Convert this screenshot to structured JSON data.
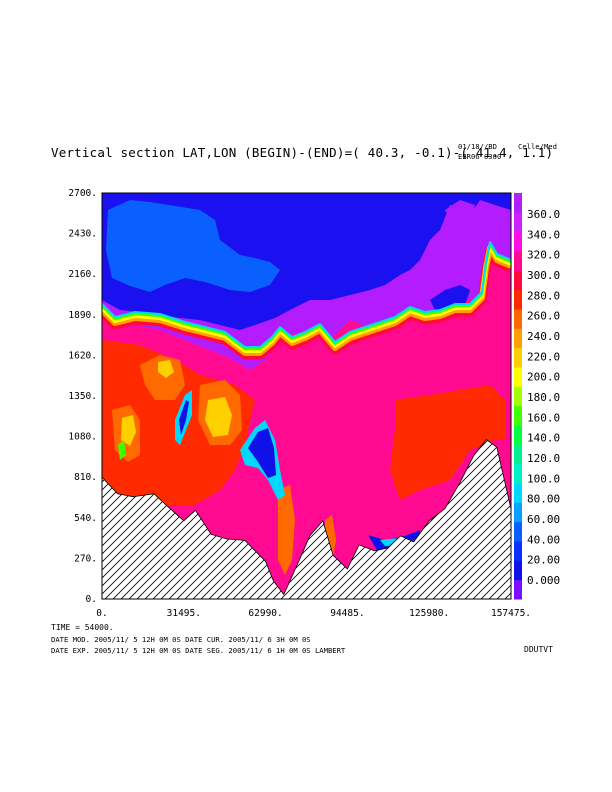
{
  "header": {
    "title": "Vertical section LAT,LON (BEGIN)-(END)=( 40.3, -0.1)-( 41.4,  1.1)",
    "date_code": "01/18//BD",
    "run_code": "EBR06 0300",
    "units": "Celle/Med"
  },
  "footer": {
    "time_line": "TIME =   54000.",
    "line1": "DATE MOD. 2005/11/ 5  12H 0M 0S   DATE CUR. 2005/11/ 6   3H 0M 0S",
    "line2": "DATE EXP. 2005/11/ 5  12H 0M 0S   DATE SEG. 2005/11/ 6   1H 0M 0S   LAMBERT",
    "tag": "DDUTVT"
  },
  "chart_data": {
    "type": "heatmap",
    "title": "Vertical section LAT,LON (BEGIN)-(END)=( 40.3, -0.1)-( 41.4,  1.1)",
    "xlabel": "",
    "ylabel": "",
    "xlim": [
      0,
      157475
    ],
    "ylim": [
      0,
      2700
    ],
    "x_ticks": [
      "0.",
      "31495.",
      "62990.",
      "94485.",
      "125980.",
      "157475."
    ],
    "y_ticks": [
      "0.",
      "270.",
      "540.",
      "810.",
      "1080.",
      "1350.",
      "1620.",
      "1890.",
      "2160.",
      "2430.",
      "2700."
    ],
    "colorbar_labels": [
      "0.000",
      "20.00",
      "40.00",
      "60.00",
      "80.00",
      "100.0",
      "120.0",
      "140.0",
      "160.0",
      "180.0",
      "200.0",
      "220.0",
      "240.0",
      "260.0",
      "280.0",
      "300.0",
      "320.0",
      "340.0",
      "360.0"
    ],
    "colorbar_colors": [
      "#7a10ff",
      "#1010e8",
      "#0a30ff",
      "#0a60ff",
      "#0aa0ff",
      "#00d8ff",
      "#00f0c8",
      "#00f090",
      "#00ff40",
      "#40ff00",
      "#a0ff00",
      "#ffff00",
      "#ffd000",
      "#ffa000",
      "#ff6a00",
      "#ff2a00",
      "#ff0a3a",
      "#ff0a90",
      "#ff10e0",
      "#d020ff",
      "#b020ff"
    ],
    "terrain_x": [
      0,
      6000,
      12000,
      20000,
      25000,
      31495,
      36000,
      42000,
      48000,
      55000,
      62990,
      66000,
      70000,
      76000,
      80000,
      85000,
      89000,
      94485,
      99000,
      105000,
      110000,
      115000,
      120000,
      125980,
      132000,
      138000,
      143000,
      148000,
      152000,
      157475
    ],
    "terrain_y": [
      810,
      700,
      680,
      700,
      620,
      520,
      590,
      430,
      400,
      390,
      250,
      120,
      30,
      260,
      420,
      520,
      290,
      200,
      360,
      320,
      340,
      420,
      380,
      520,
      600,
      780,
      950,
      1060,
      1010,
      600
    ]
  }
}
